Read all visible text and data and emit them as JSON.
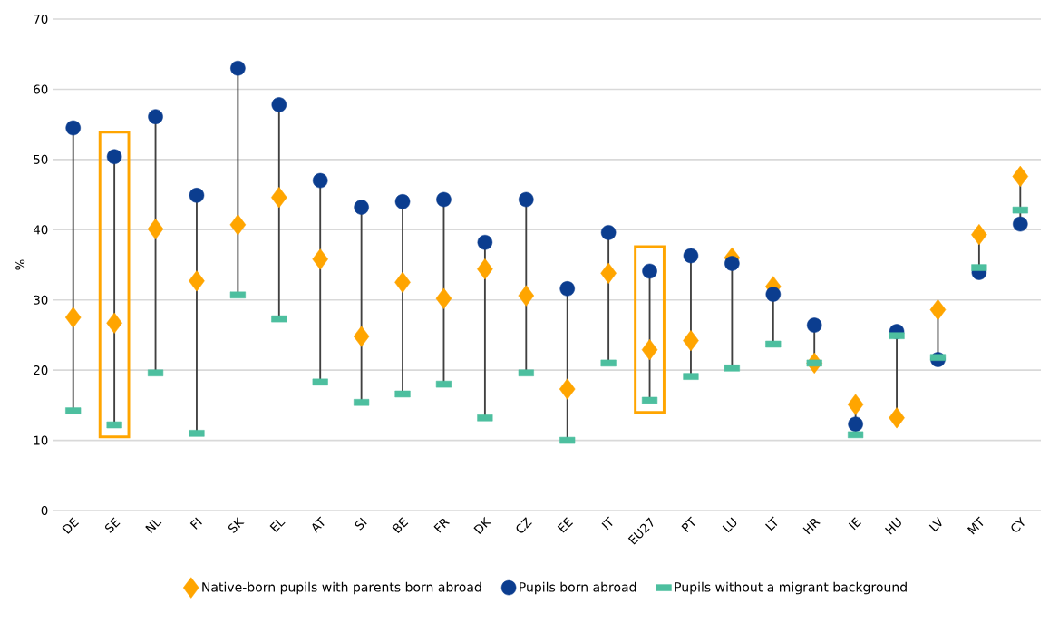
{
  "chart_data": {
    "type": "scatter",
    "ylabel": "%",
    "categories": [
      "DE",
      "SE",
      "NL",
      "FI",
      "SK",
      "EL",
      "AT",
      "SI",
      "BE",
      "FR",
      "DK",
      "CZ",
      "EE",
      "IT",
      "EU27",
      "PT",
      "LU",
      "LT",
      "HR",
      "IE",
      "HU",
      "LV",
      "MT",
      "CY"
    ],
    "ylim": [
      0,
      70
    ],
    "yticks": [
      0,
      10,
      20,
      30,
      40,
      50,
      60,
      70
    ],
    "grid": "y",
    "legend": "bottom",
    "series": [
      {
        "name": "Native-born pupils with parents born abroad",
        "color": "#ffa500",
        "marker": "diamond",
        "values": [
          27.5,
          26.7,
          40.1,
          32.7,
          40.7,
          44.6,
          35.8,
          24.8,
          32.5,
          30.2,
          34.4,
          30.6,
          17.3,
          33.8,
          22.9,
          24.2,
          36.0,
          31.9,
          21.0,
          15.1,
          13.2,
          28.6,
          39.3,
          47.6
        ]
      },
      {
        "name": "Pupils born abroad",
        "color": "#0b3d8f",
        "marker": "circle",
        "values": [
          54.5,
          50.4,
          56.1,
          44.9,
          63.0,
          57.8,
          47.0,
          43.2,
          44.0,
          44.3,
          38.2,
          44.3,
          31.6,
          39.6,
          34.1,
          36.3,
          35.2,
          30.8,
          26.4,
          12.3,
          25.5,
          21.5,
          33.9,
          40.8
        ]
      },
      {
        "name": "Pupils without a migrant background",
        "color": "#4dbf9f",
        "marker": "square",
        "values": [
          14.2,
          12.2,
          19.6,
          11.0,
          30.7,
          27.3,
          18.3,
          15.4,
          16.6,
          18.0,
          13.2,
          19.6,
          10.0,
          21.0,
          15.7,
          19.1,
          20.3,
          23.7,
          21.0,
          10.8,
          24.9,
          21.8,
          34.6,
          42.8
        ]
      }
    ]
  }
}
